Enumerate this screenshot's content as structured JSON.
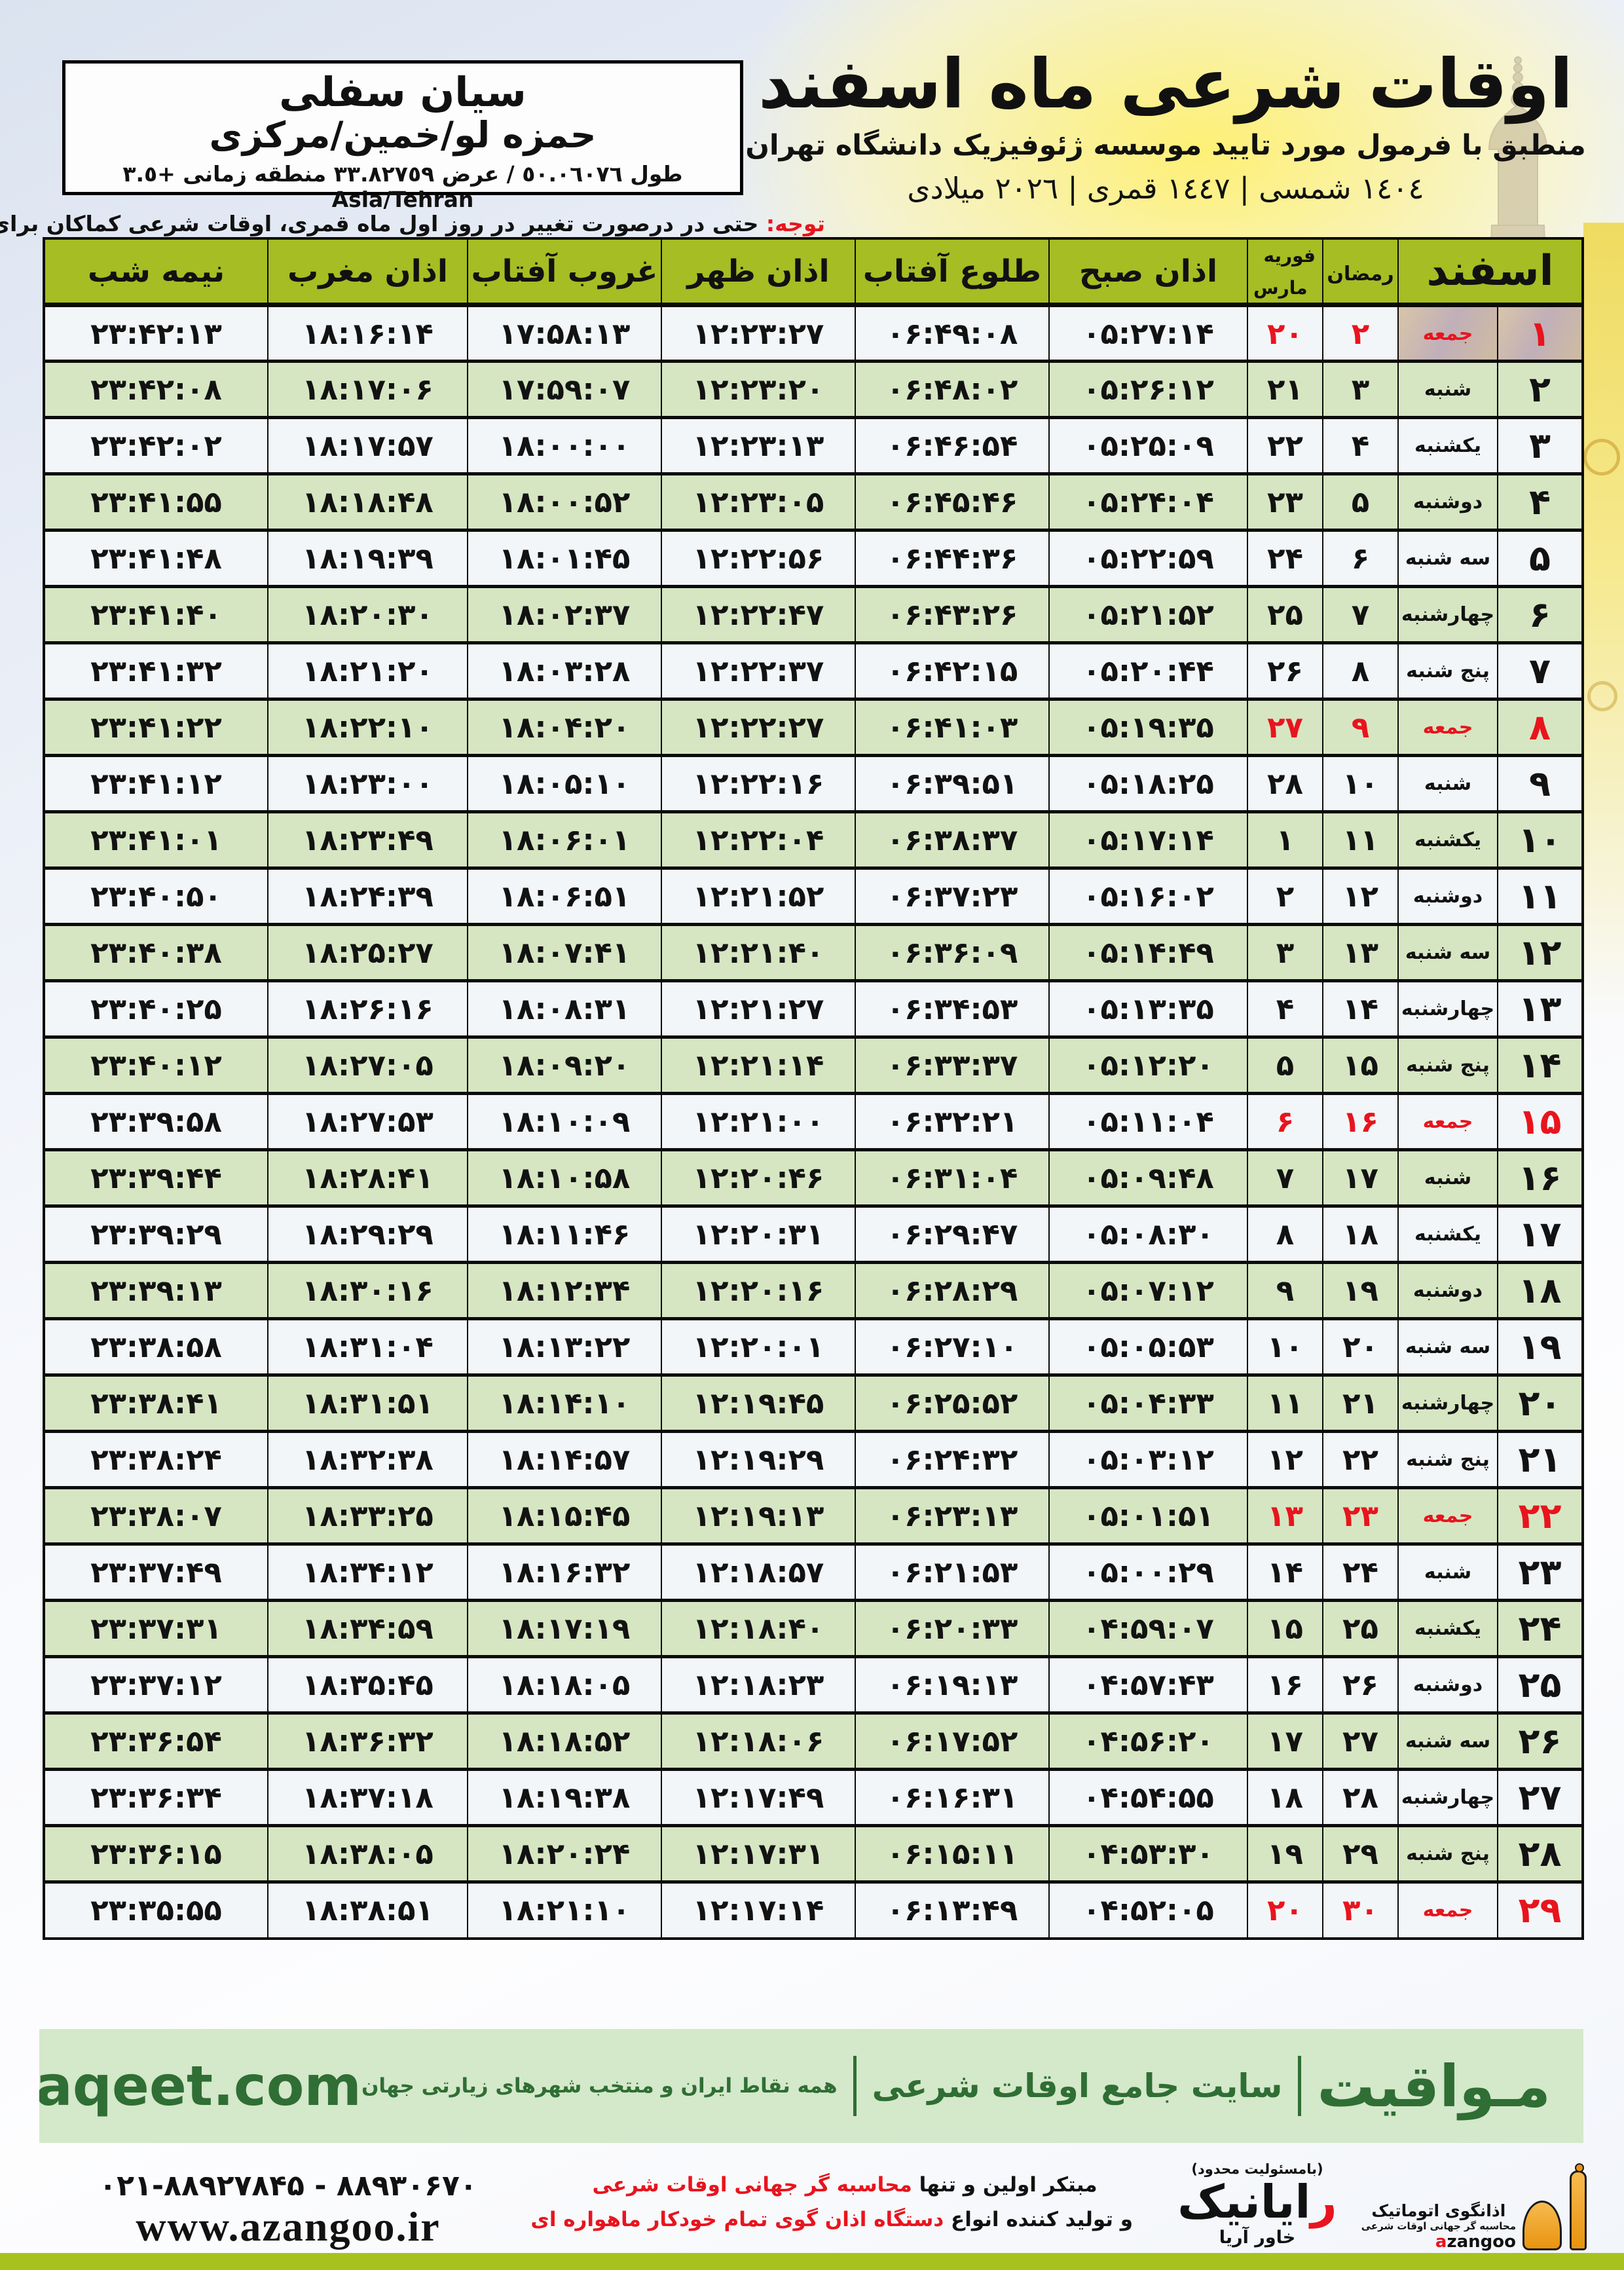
{
  "header": {
    "title": "اوقات شرعی ماه اسفند",
    "subtitle": "منطبق با فرمول مورد تایید موسسه ژئوفیزیک دانشگاه تهران",
    "year_line": "١٤٠٤ شمسی | ١٤٤٧ قمری | ٢٠٢٦ میلادی",
    "location": {
      "name": "سیان سفلی",
      "region": "حمزه لو/خمین/مرکزی",
      "coords": "طول ٥٠.٠٦٠٧٦ / عرض ٣٣.٨٢٧٥٩ منطقه زمانی +٣.٥ Asia/Tehran"
    },
    "note_label": "توجه:",
    "note_text": " حتی در درصورت تغییر در روز اول ماه قمری، اوقات شرعی کماکان برای روزهای شمسی و میلادی معتبر است."
  },
  "table": {
    "headers": {
      "esfand": "اسفند",
      "ramadan": "رمضان",
      "february": "فوریه",
      "march": "مارس",
      "fajr": "اذان صبح",
      "sunrise": "طلوع آفتاب",
      "dhuhr": "اذان ظهر",
      "sunset": "غروب آفتاب",
      "maghrib": "اذان مغرب",
      "midnight": "نیمه شب"
    },
    "rows": [
      {
        "day": "۱",
        "weekday": "جمعه",
        "ramadan": "۲",
        "feb_mar": "۲۰",
        "fajr": "۰۵:۲۷:۱۴",
        "sunrise": "۰۶:۴۹:۰۸",
        "dhuhr": "۱۲:۲۳:۲۷",
        "sunset": "۱۷:۵۸:۱۳",
        "maghrib": "۱۸:۱۶:۱۴",
        "midnight": "۲۳:۴۲:۱۳",
        "friday": true
      },
      {
        "day": "۲",
        "weekday": "شنبه",
        "ramadan": "۳",
        "feb_mar": "۲۱",
        "fajr": "۰۵:۲۶:۱۲",
        "sunrise": "۰۶:۴۸:۰۲",
        "dhuhr": "۱۲:۲۳:۲۰",
        "sunset": "۱۷:۵۹:۰۷",
        "maghrib": "۱۸:۱۷:۰۶",
        "midnight": "۲۳:۴۲:۰۸",
        "friday": false
      },
      {
        "day": "۳",
        "weekday": "یکشنبه",
        "ramadan": "۴",
        "feb_mar": "۲۲",
        "fajr": "۰۵:۲۵:۰۹",
        "sunrise": "۰۶:۴۶:۵۴",
        "dhuhr": "۱۲:۲۳:۱۳",
        "sunset": "۱۸:۰۰:۰۰",
        "maghrib": "۱۸:۱۷:۵۷",
        "midnight": "۲۳:۴۲:۰۲",
        "friday": false
      },
      {
        "day": "۴",
        "weekday": "دوشنبه",
        "ramadan": "۵",
        "feb_mar": "۲۳",
        "fajr": "۰۵:۲۴:۰۴",
        "sunrise": "۰۶:۴۵:۴۶",
        "dhuhr": "۱۲:۲۳:۰۵",
        "sunset": "۱۸:۰۰:۵۲",
        "maghrib": "۱۸:۱۸:۴۸",
        "midnight": "۲۳:۴۱:۵۵",
        "friday": false
      },
      {
        "day": "۵",
        "weekday": "سه شنبه",
        "ramadan": "۶",
        "feb_mar": "۲۴",
        "fajr": "۰۵:۲۲:۵۹",
        "sunrise": "۰۶:۴۴:۳۶",
        "dhuhr": "۱۲:۲۲:۵۶",
        "sunset": "۱۸:۰۱:۴۵",
        "maghrib": "۱۸:۱۹:۳۹",
        "midnight": "۲۳:۴۱:۴۸",
        "friday": false
      },
      {
        "day": "۶",
        "weekday": "چهارشنبه",
        "ramadan": "۷",
        "feb_mar": "۲۵",
        "fajr": "۰۵:۲۱:۵۲",
        "sunrise": "۰۶:۴۳:۲۶",
        "dhuhr": "۱۲:۲۲:۴۷",
        "sunset": "۱۸:۰۲:۳۷",
        "maghrib": "۱۸:۲۰:۳۰",
        "midnight": "۲۳:۴۱:۴۰",
        "friday": false
      },
      {
        "day": "۷",
        "weekday": "پنج شنبه",
        "ramadan": "۸",
        "feb_mar": "۲۶",
        "fajr": "۰۵:۲۰:۴۴",
        "sunrise": "۰۶:۴۲:۱۵",
        "dhuhr": "۱۲:۲۲:۳۷",
        "sunset": "۱۸:۰۳:۲۸",
        "maghrib": "۱۸:۲۱:۲۰",
        "midnight": "۲۳:۴۱:۳۲",
        "friday": false
      },
      {
        "day": "۸",
        "weekday": "جمعه",
        "ramadan": "۹",
        "feb_mar": "۲۷",
        "fajr": "۰۵:۱۹:۳۵",
        "sunrise": "۰۶:۴۱:۰۳",
        "dhuhr": "۱۲:۲۲:۲۷",
        "sunset": "۱۸:۰۴:۲۰",
        "maghrib": "۱۸:۲۲:۱۰",
        "midnight": "۲۳:۴۱:۲۲",
        "friday": true
      },
      {
        "day": "۹",
        "weekday": "شنبه",
        "ramadan": "۱۰",
        "feb_mar": "۲۸",
        "fajr": "۰۵:۱۸:۲۵",
        "sunrise": "۰۶:۳۹:۵۱",
        "dhuhr": "۱۲:۲۲:۱۶",
        "sunset": "۱۸:۰۵:۱۰",
        "maghrib": "۱۸:۲۳:۰۰",
        "midnight": "۲۳:۴۱:۱۲",
        "friday": false
      },
      {
        "day": "۱۰",
        "weekday": "یکشنبه",
        "ramadan": "۱۱",
        "feb_mar": "۱",
        "fajr": "۰۵:۱۷:۱۴",
        "sunrise": "۰۶:۳۸:۳۷",
        "dhuhr": "۱۲:۲۲:۰۴",
        "sunset": "۱۸:۰۶:۰۱",
        "maghrib": "۱۸:۲۳:۴۹",
        "midnight": "۲۳:۴۱:۰۱",
        "friday": false
      },
      {
        "day": "۱۱",
        "weekday": "دوشنبه",
        "ramadan": "۱۲",
        "feb_mar": "۲",
        "fajr": "۰۵:۱۶:۰۲",
        "sunrise": "۰۶:۳۷:۲۳",
        "dhuhr": "۱۲:۲۱:۵۲",
        "sunset": "۱۸:۰۶:۵۱",
        "maghrib": "۱۸:۲۴:۳۹",
        "midnight": "۲۳:۴۰:۵۰",
        "friday": false
      },
      {
        "day": "۱۲",
        "weekday": "سه شنبه",
        "ramadan": "۱۳",
        "feb_mar": "۳",
        "fajr": "۰۵:۱۴:۴۹",
        "sunrise": "۰۶:۳۶:۰۹",
        "dhuhr": "۱۲:۲۱:۴۰",
        "sunset": "۱۸:۰۷:۴۱",
        "maghrib": "۱۸:۲۵:۲۷",
        "midnight": "۲۳:۴۰:۳۸",
        "friday": false
      },
      {
        "day": "۱۳",
        "weekday": "چهارشنبه",
        "ramadan": "۱۴",
        "feb_mar": "۴",
        "fajr": "۰۵:۱۳:۳۵",
        "sunrise": "۰۶:۳۴:۵۳",
        "dhuhr": "۱۲:۲۱:۲۷",
        "sunset": "۱۸:۰۸:۳۱",
        "maghrib": "۱۸:۲۶:۱۶",
        "midnight": "۲۳:۴۰:۲۵",
        "friday": false
      },
      {
        "day": "۱۴",
        "weekday": "پنج شنبه",
        "ramadan": "۱۵",
        "feb_mar": "۵",
        "fajr": "۰۵:۱۲:۲۰",
        "sunrise": "۰۶:۳۳:۳۷",
        "dhuhr": "۱۲:۲۱:۱۴",
        "sunset": "۱۸:۰۹:۲۰",
        "maghrib": "۱۸:۲۷:۰۵",
        "midnight": "۲۳:۴۰:۱۲",
        "friday": false
      },
      {
        "day": "۱۵",
        "weekday": "جمعه",
        "ramadan": "۱۶",
        "feb_mar": "۶",
        "fajr": "۰۵:۱۱:۰۴",
        "sunrise": "۰۶:۳۲:۲۱",
        "dhuhr": "۱۲:۲۱:۰۰",
        "sunset": "۱۸:۱۰:۰۹",
        "maghrib": "۱۸:۲۷:۵۳",
        "midnight": "۲۳:۳۹:۵۸",
        "friday": true
      },
      {
        "day": "۱۶",
        "weekday": "شنبه",
        "ramadan": "۱۷",
        "feb_mar": "۷",
        "fajr": "۰۵:۰۹:۴۸",
        "sunrise": "۰۶:۳۱:۰۴",
        "dhuhr": "۱۲:۲۰:۴۶",
        "sunset": "۱۸:۱۰:۵۸",
        "maghrib": "۱۸:۲۸:۴۱",
        "midnight": "۲۳:۳۹:۴۴",
        "friday": false
      },
      {
        "day": "۱۷",
        "weekday": "یکشنبه",
        "ramadan": "۱۸",
        "feb_mar": "۸",
        "fajr": "۰۵:۰۸:۳۰",
        "sunrise": "۰۶:۲۹:۴۷",
        "dhuhr": "۱۲:۲۰:۳۱",
        "sunset": "۱۸:۱۱:۴۶",
        "maghrib": "۱۸:۲۹:۲۹",
        "midnight": "۲۳:۳۹:۲۹",
        "friday": false
      },
      {
        "day": "۱۸",
        "weekday": "دوشنبه",
        "ramadan": "۱۹",
        "feb_mar": "۹",
        "fajr": "۰۵:۰۷:۱۲",
        "sunrise": "۰۶:۲۸:۲۹",
        "dhuhr": "۱۲:۲۰:۱۶",
        "sunset": "۱۸:۱۲:۳۴",
        "maghrib": "۱۸:۳۰:۱۶",
        "midnight": "۲۳:۳۹:۱۳",
        "friday": false
      },
      {
        "day": "۱۹",
        "weekday": "سه شنبه",
        "ramadan": "۲۰",
        "feb_mar": "۱۰",
        "fajr": "۰۵:۰۵:۵۳",
        "sunrise": "۰۶:۲۷:۱۰",
        "dhuhr": "۱۲:۲۰:۰۱",
        "sunset": "۱۸:۱۳:۲۲",
        "maghrib": "۱۸:۳۱:۰۴",
        "midnight": "۲۳:۳۸:۵۸",
        "friday": false
      },
      {
        "day": "۲۰",
        "weekday": "چهارشنبه",
        "ramadan": "۲۱",
        "feb_mar": "۱۱",
        "fajr": "۰۵:۰۴:۳۳",
        "sunrise": "۰۶:۲۵:۵۲",
        "dhuhr": "۱۲:۱۹:۴۵",
        "sunset": "۱۸:۱۴:۱۰",
        "maghrib": "۱۸:۳۱:۵۱",
        "midnight": "۲۳:۳۸:۴۱",
        "friday": false
      },
      {
        "day": "۲۱",
        "weekday": "پنج شنبه",
        "ramadan": "۲۲",
        "feb_mar": "۱۲",
        "fajr": "۰۵:۰۳:۱۲",
        "sunrise": "۰۶:۲۴:۳۲",
        "dhuhr": "۱۲:۱۹:۲۹",
        "sunset": "۱۸:۱۴:۵۷",
        "maghrib": "۱۸:۳۲:۳۸",
        "midnight": "۲۳:۳۸:۲۴",
        "friday": false
      },
      {
        "day": "۲۲",
        "weekday": "جمعه",
        "ramadan": "۲۳",
        "feb_mar": "۱۳",
        "fajr": "۰۵:۰۱:۵۱",
        "sunrise": "۰۶:۲۳:۱۳",
        "dhuhr": "۱۲:۱۹:۱۳",
        "sunset": "۱۸:۱۵:۴۵",
        "maghrib": "۱۸:۳۳:۲۵",
        "midnight": "۲۳:۳۸:۰۷",
        "friday": true
      },
      {
        "day": "۲۳",
        "weekday": "شنبه",
        "ramadan": "۲۴",
        "feb_mar": "۱۴",
        "fajr": "۰۵:۰۰:۲۹",
        "sunrise": "۰۶:۲۱:۵۳",
        "dhuhr": "۱۲:۱۸:۵۷",
        "sunset": "۱۸:۱۶:۳۲",
        "maghrib": "۱۸:۳۴:۱۲",
        "midnight": "۲۳:۳۷:۴۹",
        "friday": false
      },
      {
        "day": "۲۴",
        "weekday": "یکشنبه",
        "ramadan": "۲۵",
        "feb_mar": "۱۵",
        "fajr": "۰۴:۵۹:۰۷",
        "sunrise": "۰۶:۲۰:۳۳",
        "dhuhr": "۱۲:۱۸:۴۰",
        "sunset": "۱۸:۱۷:۱۹",
        "maghrib": "۱۸:۳۴:۵۹",
        "midnight": "۲۳:۳۷:۳۱",
        "friday": false
      },
      {
        "day": "۲۵",
        "weekday": "دوشنبه",
        "ramadan": "۲۶",
        "feb_mar": "۱۶",
        "fajr": "۰۴:۵۷:۴۳",
        "sunrise": "۰۶:۱۹:۱۳",
        "dhuhr": "۱۲:۱۸:۲۳",
        "sunset": "۱۸:۱۸:۰۵",
        "maghrib": "۱۸:۳۵:۴۵",
        "midnight": "۲۳:۳۷:۱۲",
        "friday": false
      },
      {
        "day": "۲۶",
        "weekday": "سه شنبه",
        "ramadan": "۲۷",
        "feb_mar": "۱۷",
        "fajr": "۰۴:۵۶:۲۰",
        "sunrise": "۰۶:۱۷:۵۲",
        "dhuhr": "۱۲:۱۸:۰۶",
        "sunset": "۱۸:۱۸:۵۲",
        "maghrib": "۱۸:۳۶:۳۲",
        "midnight": "۲۳:۳۶:۵۴",
        "friday": false
      },
      {
        "day": "۲۷",
        "weekday": "چهارشنبه",
        "ramadan": "۲۸",
        "feb_mar": "۱۸",
        "fajr": "۰۴:۵۴:۵۵",
        "sunrise": "۰۶:۱۶:۳۱",
        "dhuhr": "۱۲:۱۷:۴۹",
        "sunset": "۱۸:۱۹:۳۸",
        "maghrib": "۱۸:۳۷:۱۸",
        "midnight": "۲۳:۳۶:۳۴",
        "friday": false
      },
      {
        "day": "۲۸",
        "weekday": "پنج شنبه",
        "ramadan": "۲۹",
        "feb_mar": "۱۹",
        "fajr": "۰۴:۵۳:۳۰",
        "sunrise": "۰۶:۱۵:۱۱",
        "dhuhr": "۱۲:۱۷:۳۱",
        "sunset": "۱۸:۲۰:۲۴",
        "maghrib": "۱۸:۳۸:۰۵",
        "midnight": "۲۳:۳۶:۱۵",
        "friday": false
      },
      {
        "day": "۲۹",
        "weekday": "جمعه",
        "ramadan": "۳۰",
        "feb_mar": "۲۰",
        "fajr": "۰۴:۵۲:۰۵",
        "sunrise": "۰۶:۱۳:۴۹",
        "dhuhr": "۱۲:۱۷:۱۴",
        "sunset": "۱۸:۲۱:۱۰",
        "maghrib": "۱۸:۳۸:۵۱",
        "midnight": "۲۳:۳۵:۵۵",
        "friday": true
      }
    ]
  },
  "mavaqeet_band": {
    "brand": "مـواقیت",
    "tagline": "سایت جامع اوقات شرعی",
    "tagline2": "همه نقاط ایران و منتخب شهرهای زیارتی جهان",
    "domain": "mavaqeet.com"
  },
  "bottom": {
    "phones": "۰۲۱-۸۸۹۲۷۸۴۵ - ۸۸۹۳۰۶۷۰",
    "website": "www.azangoo.ir",
    "brand_line1_black": "مبتکر اولین و تنها ",
    "brand_line1_red": "محاسبه گر جهانی اوقات شرعی",
    "brand_line2_black": "و تولید کننده انواع ",
    "brand_line2_red": "دستگاه اذان گوی تمام خودکار ماهواره ای",
    "rayanik": {
      "note": "(بامسئولیت محدود)",
      "name_first": "ر",
      "name_rest": "ایانیک",
      "sub": "خاور آریا"
    },
    "azangoo": {
      "name": "اذانگوی اتوماتیک",
      "sub": "محاسبه گر جهانی اوقات شرعی",
      "latin_first": "a",
      "latin_rest": "zangoo"
    }
  },
  "colors": {
    "header_green": "#a6bd23",
    "row_green": "#d6e6c2",
    "row_light": "#f3f6f8",
    "accent_red": "#e8141e",
    "band_bg": "#d4e8ca",
    "band_text": "#2f6e34",
    "bar_lime": "#a8c21d",
    "azangoo_orange": "#f2a53a"
  }
}
